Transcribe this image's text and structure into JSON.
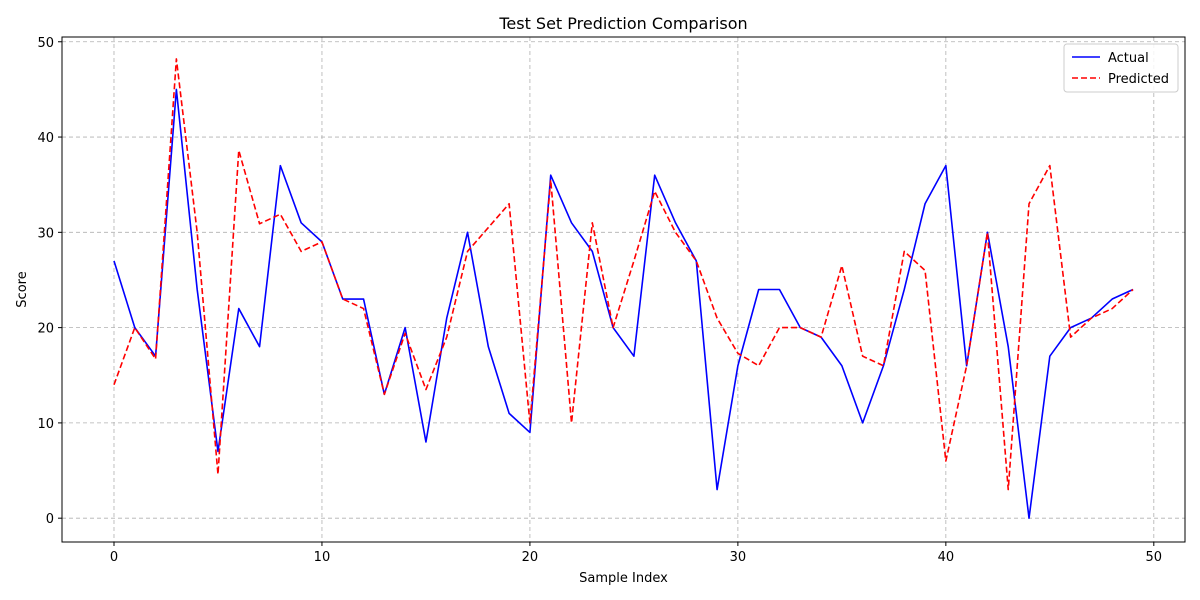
{
  "chart_data": {
    "type": "line",
    "title": "Test Set Prediction Comparison",
    "xlabel": "Sample Index",
    "ylabel": "Score",
    "xlim": [
      -2.5,
      51.5
    ],
    "ylim": [
      -2.5,
      50.5
    ],
    "xticks": [
      0,
      10,
      20,
      30,
      40,
      50
    ],
    "yticks": [
      0,
      10,
      20,
      30,
      40,
      50
    ],
    "grid": true,
    "legend_position": "top-right",
    "x": [
      0,
      1,
      2,
      3,
      4,
      5,
      6,
      7,
      8,
      9,
      10,
      11,
      12,
      13,
      14,
      15,
      16,
      17,
      18,
      19,
      20,
      21,
      22,
      23,
      24,
      25,
      26,
      27,
      28,
      29,
      30,
      31,
      32,
      33,
      34,
      35,
      36,
      37,
      38,
      39,
      40,
      41,
      42,
      43,
      44,
      45,
      46,
      47,
      48,
      49
    ],
    "series": [
      {
        "name": "Actual",
        "color": "#0000ff",
        "style": "solid",
        "values": [
          27,
          20,
          17,
          45,
          24,
          7,
          22,
          18,
          37,
          31,
          29,
          23,
          23,
          13,
          20,
          8,
          21,
          30,
          18,
          11,
          9,
          36,
          31,
          28,
          20,
          17,
          36,
          31,
          27,
          3,
          16,
          24,
          24,
          20,
          19,
          16,
          10,
          16,
          24,
          33,
          37,
          16,
          30,
          18,
          0,
          17,
          20,
          21,
          23,
          24
        ]
      },
      {
        "name": "Predicted",
        "color": "#ff0000",
        "style": "dashed",
        "values": [
          14,
          20,
          16.7,
          48.2,
          30,
          4.6,
          38.6,
          30.9,
          31.9,
          28,
          29,
          23,
          22,
          13,
          19.4,
          13.5,
          19,
          28,
          30.5,
          33,
          10,
          35.5,
          10,
          31,
          20,
          27,
          34.3,
          30,
          27,
          21,
          17.3,
          16,
          20,
          20,
          19,
          26.5,
          17,
          16,
          28,
          26,
          6,
          16,
          30,
          3,
          33,
          37,
          19,
          21,
          22,
          24
        ]
      }
    ]
  }
}
